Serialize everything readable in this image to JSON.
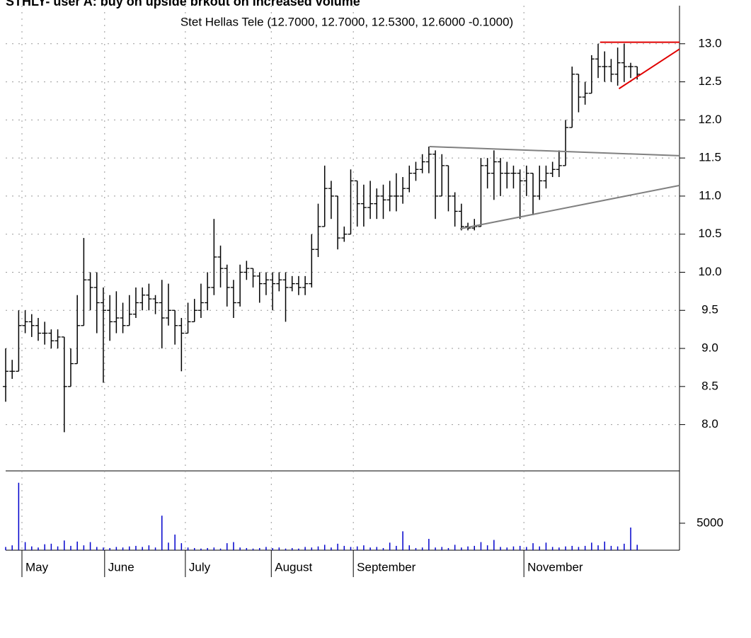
{
  "chart_data": [
    {
      "type": "ohlc",
      "title": "STHLY- user A: buy on upside brkout on increased volume",
      "subtitle": "Stet Hellas Tele (12.7000, 12.7000, 12.5300, 12.6000 -0.1000)",
      "color": "#000000",
      "xlim": [
        0,
        103.5
      ],
      "ylim": [
        7.42,
        13.5
      ],
      "yticks": [
        {
          "value": 8,
          "label": "8.0"
        },
        {
          "value": 8.5,
          "label": "8.5"
        },
        {
          "value": 9,
          "label": "9.0"
        },
        {
          "value": 9.5,
          "label": "9.5"
        },
        {
          "value": 10,
          "label": "10.0"
        },
        {
          "value": 10.5,
          "label": "10.5"
        },
        {
          "value": 11,
          "label": "11.0"
        },
        {
          "value": 11.5,
          "label": "11.5"
        },
        {
          "value": 12,
          "label": "12.0"
        },
        {
          "value": 12.5,
          "label": "12.5"
        },
        {
          "value": 13,
          "label": "13.0"
        }
      ],
      "grid": true,
      "open": [
        8.5,
        8.7,
        8.7,
        9.3,
        9.35,
        9.3,
        9.2,
        9.2,
        9.1,
        9.15,
        8.5,
        8.8,
        9.3,
        9.9,
        9.8,
        9.6,
        9.5,
        9.35,
        9.4,
        9.3,
        9.45,
        9.6,
        9.7,
        9.65,
        9.6,
        9.4,
        9.5,
        9.3,
        9.2,
        9.35,
        9.5,
        9.6,
        9.8,
        10.2,
        10.05,
        9.8,
        9.6,
        10.0,
        10.05,
        9.95,
        9.85,
        9.9,
        9.85,
        9.9,
        9.8,
        9.85,
        9.8,
        9.85,
        10.3,
        10.6,
        11.1,
        11.0,
        10.45,
        10.5,
        11.2,
        10.9,
        10.85,
        10.9,
        11.0,
        10.95,
        11.0,
        11.0,
        11.1,
        11.3,
        11.35,
        11.45,
        11.55,
        11.0,
        11.4,
        11.0,
        10.8,
        10.6,
        10.58,
        10.6,
        11.4,
        11.3,
        11.45,
        11.3,
        11.3,
        11.3,
        11.2,
        11.3,
        11.0,
        11.2,
        11.3,
        11.35,
        11.4,
        11.9,
        12.6,
        12.3,
        12.35,
        12.8,
        12.7,
        12.7,
        12.6,
        12.75,
        12.7,
        12.7
      ],
      "high": [
        9.0,
        8.85,
        9.5,
        9.5,
        9.45,
        9.4,
        9.35,
        9.25,
        9.25,
        9.15,
        9.0,
        9.7,
        10.45,
        10.0,
        10.0,
        9.8,
        9.7,
        9.75,
        9.6,
        9.7,
        9.8,
        9.8,
        9.85,
        9.7,
        9.9,
        9.85,
        9.5,
        9.4,
        9.6,
        9.65,
        9.85,
        10.0,
        10.7,
        10.35,
        10.1,
        9.9,
        10.1,
        10.15,
        10.05,
        10.0,
        10.0,
        10.0,
        10.0,
        10.0,
        9.95,
        9.95,
        9.95,
        10.5,
        10.9,
        11.4,
        11.2,
        11.0,
        10.6,
        11.35,
        11.2,
        11.15,
        11.2,
        11.1,
        11.15,
        11.2,
        11.3,
        11.25,
        11.4,
        11.45,
        11.55,
        11.65,
        11.6,
        11.55,
        11.4,
        11.05,
        10.9,
        10.65,
        10.7,
        11.5,
        11.5,
        11.6,
        11.5,
        11.45,
        11.4,
        11.35,
        11.4,
        11.3,
        11.4,
        11.4,
        11.45,
        11.6,
        12.0,
        12.7,
        12.6,
        12.5,
        12.85,
        13.0,
        12.9,
        12.8,
        12.95,
        13.0,
        12.75,
        12.7
      ],
      "low": [
        8.3,
        8.6,
        8.7,
        9.2,
        9.15,
        9.1,
        9.05,
        9.0,
        9.0,
        7.9,
        8.5,
        8.8,
        9.3,
        9.5,
        9.2,
        8.55,
        9.1,
        9.2,
        9.2,
        9.3,
        9.4,
        9.5,
        9.5,
        9.45,
        9.0,
        9.3,
        9.05,
        8.7,
        9.2,
        9.35,
        9.4,
        9.5,
        9.7,
        9.8,
        9.55,
        9.4,
        9.55,
        9.9,
        9.8,
        9.6,
        9.7,
        9.5,
        9.75,
        9.35,
        9.75,
        9.7,
        9.7,
        9.8,
        10.2,
        10.6,
        10.7,
        10.3,
        10.4,
        10.5,
        10.6,
        10.6,
        10.7,
        10.7,
        10.7,
        10.8,
        10.8,
        10.9,
        11.05,
        11.2,
        11.3,
        11.3,
        10.7,
        11.0,
        10.8,
        10.6,
        10.55,
        10.55,
        10.55,
        10.6,
        11.1,
        10.95,
        11.0,
        11.1,
        11.1,
        10.7,
        11.0,
        10.75,
        10.95,
        11.1,
        11.25,
        11.25,
        11.4,
        11.9,
        12.1,
        12.2,
        12.35,
        12.55,
        12.5,
        12.5,
        12.45,
        12.5,
        12.55,
        12.53
      ],
      "close": [
        8.7,
        8.7,
        9.3,
        9.35,
        9.3,
        9.2,
        9.2,
        9.1,
        9.15,
        8.5,
        8.8,
        9.3,
        9.9,
        9.8,
        9.6,
        9.5,
        9.35,
        9.4,
        9.3,
        9.45,
        9.6,
        9.7,
        9.65,
        9.6,
        9.4,
        9.5,
        9.3,
        9.2,
        9.35,
        9.5,
        9.6,
        9.8,
        10.2,
        10.05,
        9.8,
        9.6,
        10.0,
        10.05,
        9.95,
        9.85,
        9.9,
        9.85,
        9.9,
        9.8,
        9.85,
        9.8,
        9.85,
        10.3,
        10.6,
        11.1,
        11.0,
        10.45,
        10.5,
        11.2,
        10.9,
        10.85,
        10.9,
        11.0,
        10.95,
        11.0,
        11.0,
        11.1,
        11.3,
        11.35,
        11.45,
        11.55,
        11.0,
        11.4,
        11.0,
        10.8,
        10.6,
        10.58,
        10.6,
        11.4,
        11.3,
        11.45,
        11.3,
        11.3,
        11.3,
        11.2,
        11.3,
        11.0,
        11.2,
        11.3,
        11.35,
        11.4,
        11.9,
        12.6,
        12.3,
        12.35,
        12.8,
        12.7,
        12.7,
        12.6,
        12.75,
        12.7,
        12.7,
        12.6
      ],
      "lines": [
        {
          "color": "#808080",
          "x": [
            65.1,
            103.5
          ],
          "y": [
            11.65,
            11.53
          ]
        },
        {
          "color": "#808080",
          "x": [
            69.8,
            103.5
          ],
          "y": [
            10.57,
            11.14
          ]
        },
        {
          "color": "#e00000",
          "x": [
            91.3,
            103.5
          ],
          "y": [
            13.02,
            13.02
          ]
        },
        {
          "color": "#e00000",
          "x": [
            94.2,
            103.5
          ],
          "y": [
            12.41,
            12.93
          ]
        }
      ]
    },
    {
      "type": "bar",
      "color": "#0000cc",
      "xlim": [
        0,
        103.5
      ],
      "ylim": [
        0,
        14700
      ],
      "yticks": [
        5000
      ],
      "xticks": [
        {
          "value": 2.5,
          "label": "May"
        },
        {
          "value": 15.2,
          "label": "June"
        },
        {
          "value": 27.6,
          "label": "July"
        },
        {
          "value": 40.8,
          "label": "August"
        },
        {
          "value": 53.4,
          "label": "September"
        },
        {
          "value": 79.6,
          "label": "November"
        }
      ],
      "values": [
        600,
        900,
        12500,
        1500,
        700,
        500,
        1100,
        1200,
        700,
        1800,
        800,
        1600,
        900,
        1500,
        600,
        500,
        400,
        600,
        500,
        700,
        800,
        600,
        900,
        500,
        6400,
        1400,
        2900,
        1300,
        500,
        400,
        300,
        400,
        500,
        300,
        1300,
        1500,
        500,
        400,
        300,
        400,
        600,
        400,
        500,
        300,
        400,
        300,
        600,
        500,
        700,
        1000,
        500,
        1200,
        800,
        600,
        700,
        900,
        500,
        600,
        400,
        1400,
        800,
        3500,
        900,
        400,
        500,
        2100,
        500,
        600,
        400,
        1000,
        500,
        700,
        800,
        1500,
        900,
        1900,
        600,
        500,
        700,
        800,
        600,
        1300,
        700,
        1400,
        600,
        500,
        700,
        800,
        600,
        800,
        1400,
        900,
        1600,
        800,
        700,
        1200,
        4200,
        1000
      ]
    }
  ]
}
